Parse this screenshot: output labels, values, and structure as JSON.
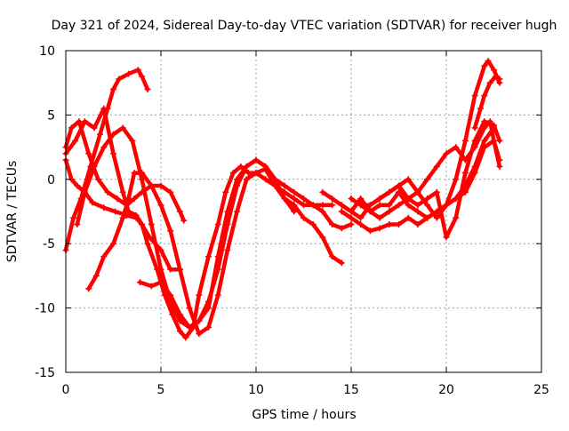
{
  "chart_data": {
    "type": "line",
    "title": "Day 321 of 2024, Sidereal Day-to-day VTEC variation (SDTVAR) for receiver hugh",
    "xlabel": "GPS time / hours",
    "ylabel": "SDTVAR / TECUs",
    "xlim": [
      0,
      25
    ],
    "ylim": [
      -15,
      10
    ],
    "xticks": [
      0,
      5,
      10,
      15,
      20,
      25
    ],
    "yticks": [
      -15,
      -10,
      -5,
      0,
      5,
      10
    ],
    "grid": true,
    "legend": "none",
    "marker": "plus",
    "colors": {
      "series": "#ff0000",
      "grid": "#a0a0a0",
      "axis": "#000000"
    },
    "series": [
      {
        "x": [
          0.0,
          0.3,
          0.6,
          1.0,
          1.4,
          2.0,
          2.6,
          3.2,
          3.7,
          4.0,
          4.4,
          5.0,
          5.5,
          6.0
        ],
        "y": [
          1.5,
          0.0,
          -0.5,
          -1.0,
          -1.8,
          -2.2,
          -2.5,
          -2.8,
          -3.0,
          -3.5,
          -4.5,
          -5.5,
          -7.0,
          -7.0
        ]
      },
      {
        "x": [
          0.0,
          0.3,
          0.7,
          1.2,
          1.7,
          2.2,
          2.7,
          3.2,
          3.6,
          4.0,
          4.5,
          5.0,
          5.5,
          6.0,
          6.2
        ],
        "y": [
          2.5,
          4.0,
          4.5,
          2.0,
          0.0,
          -1.0,
          -1.5,
          -2.0,
          -1.5,
          -1.0,
          -0.5,
          -0.5,
          -1.0,
          -2.5,
          -3.2
        ]
      },
      {
        "x": [
          0.0,
          0.5,
          1.0,
          1.5,
          2.0,
          2.5,
          3.0,
          3.3,
          3.7,
          4.0,
          4.3,
          4.8,
          5.2,
          5.6,
          6.0,
          6.3,
          6.7,
          7.0,
          7.5,
          8.0,
          8.4,
          8.8,
          9.2,
          9.6,
          10.0,
          10.5,
          11.0,
          11.5,
          12.0,
          12.5,
          13.0,
          13.5,
          14.0,
          14.5
        ],
        "y": [
          2.0,
          3.0,
          4.5,
          4.0,
          5.5,
          2.0,
          -1.0,
          -2.5,
          -2.8,
          -3.5,
          -5.0,
          -7.0,
          -9.0,
          -10.5,
          -11.8,
          -12.3,
          -11.5,
          -9.0,
          -6.0,
          -3.5,
          -1.0,
          0.5,
          1.0,
          0.5,
          0.5,
          0.8,
          -0.5,
          -1.5,
          -2.0,
          -3.0,
          -3.5,
          -4.5,
          -6.0,
          -6.5
        ]
      },
      {
        "x": [
          0.0,
          0.4,
          0.8,
          1.3,
          1.8,
          2.2,
          2.5,
          2.8,
          3.3,
          3.8,
          4.0,
          4.3
        ],
        "y": [
          -5.5,
          -3.0,
          -1.5,
          1.0,
          3.5,
          5.5,
          7.0,
          7.8,
          8.2,
          8.5,
          8.0,
          7.0
        ]
      },
      {
        "x": [
          0.6,
          1.0,
          1.5,
          2.0,
          2.5,
          3.0,
          3.5,
          4.0,
          4.5,
          5.0,
          5.5,
          6.0,
          6.5,
          7.0,
          7.5,
          8.0,
          8.5,
          9.0,
          9.5,
          10.0,
          10.5,
          11.0,
          11.5,
          12.0,
          12.5,
          13.0,
          13.5,
          14.0,
          14.5,
          15.0
        ],
        "y": [
          -3.5,
          -1.0,
          1.0,
          2.5,
          3.5,
          4.0,
          3.0,
          0.0,
          -3.5,
          -7.0,
          -9.5,
          -11.0,
          -11.5,
          -11.0,
          -10.0,
          -6.0,
          -2.5,
          0.0,
          1.0,
          1.5,
          1.0,
          0.0,
          -0.5,
          -1.0,
          -1.5,
          -2.0,
          -2.5,
          -3.5,
          -3.8,
          -3.5
        ]
      },
      {
        "x": [
          1.2,
          1.6,
          2.0,
          2.5,
          3.0,
          3.3,
          3.6,
          4.0,
          4.5,
          5.0,
          5.5,
          6.0,
          6.5,
          7.0,
          7.5,
          8.0,
          8.5,
          9.0,
          9.5,
          10.0,
          10.5,
          11.0,
          11.5,
          12.0,
          12.5,
          13.0,
          13.5,
          14.0
        ],
        "y": [
          -8.5,
          -7.5,
          -6.0,
          -5.0,
          -3.0,
          -1.5,
          0.5,
          0.5,
          -0.5,
          -2.0,
          -4.0,
          -7.0,
          -10.0,
          -12.0,
          -11.5,
          -9.0,
          -5.5,
          -2.5,
          0.0,
          0.5,
          0.0,
          -0.5,
          -1.0,
          -1.5,
          -2.0,
          -2.0,
          -2.0,
          -2.0
        ]
      },
      {
        "x": [
          3.9,
          4.5,
          5.0,
          5.5,
          6.0,
          6.5,
          7.0,
          7.5,
          8.0,
          8.5,
          9.0,
          9.5,
          10.0,
          10.5,
          11.0,
          11.5,
          12.0
        ],
        "y": [
          -8.0,
          -8.3,
          -8.0,
          -9.0,
          -10.5,
          -11.5,
          -11.0,
          -9.5,
          -7.0,
          -3.5,
          -0.5,
          1.0,
          1.5,
          1.0,
          0.0,
          -1.5,
          -2.5
        ]
      },
      {
        "x": [
          13.5,
          14.0,
          14.5,
          15.0,
          15.5,
          16.0,
          16.5,
          17.0,
          17.5,
          18.0,
          18.5,
          19.0,
          19.5,
          20.0,
          20.5,
          21.0,
          21.5,
          22.0,
          22.2,
          22.5,
          22.8
        ],
        "y": [
          -1.0,
          -1.5,
          -2.0,
          -2.5,
          -3.0,
          -2.0,
          -1.5,
          -1.0,
          -0.5,
          0.0,
          -1.0,
          -2.0,
          -3.0,
          -2.0,
          0.0,
          3.0,
          6.5,
          8.8,
          9.2,
          8.5,
          7.5
        ]
      },
      {
        "x": [
          15.0,
          15.5,
          16.0,
          16.5,
          17.0,
          17.5,
          18.0,
          18.5,
          19.0,
          19.5,
          20.0,
          20.5,
          21.0,
          21.5,
          22.0,
          22.5,
          22.8
        ],
        "y": [
          -1.5,
          -2.0,
          -2.0,
          -1.5,
          -1.0,
          -0.5,
          -1.5,
          -2.0,
          -1.5,
          -1.0,
          -4.5,
          -3.0,
          0.5,
          3.0,
          4.5,
          4.2,
          3.0
        ]
      },
      {
        "x": [
          14.5,
          15.0,
          15.5,
          16.0,
          16.5,
          17.0,
          17.5,
          18.0,
          18.5,
          19.0,
          19.5,
          20.0,
          20.5,
          21.0,
          21.5,
          22.0,
          22.3,
          22.5,
          22.8
        ],
        "y": [
          -2.0,
          -2.5,
          -1.5,
          -2.5,
          -3.0,
          -2.5,
          -2.0,
          -1.5,
          -1.0,
          0.0,
          1.0,
          2.0,
          2.5,
          1.5,
          2.5,
          4.0,
          4.5,
          3.0,
          1.0
        ]
      },
      {
        "x": [
          15.5,
          16.0,
          16.5,
          17.0,
          17.5,
          18.0,
          18.5,
          19.0,
          19.5,
          20.0,
          20.5,
          21.0,
          21.5,
          22.0,
          22.5,
          22.8
        ],
        "y": [
          -2.0,
          -2.5,
          -2.0,
          -2.0,
          -1.0,
          -2.0,
          -2.5,
          -3.0,
          -2.5,
          -2.0,
          -1.5,
          -1.0,
          0.5,
          2.5,
          3.0,
          1.5
        ]
      },
      {
        "x": [
          14.5,
          15.0,
          15.5,
          16.0,
          16.5,
          17.0,
          17.5,
          18.0,
          18.5,
          19.0,
          19.5,
          20.0,
          20.5,
          21.0,
          21.5,
          22.0,
          22.5
        ],
        "y": [
          -2.5,
          -3.0,
          -3.5,
          -4.0,
          -3.8,
          -3.5,
          -3.5,
          -3.0,
          -3.5,
          -3.0,
          -2.5,
          -2.0,
          -1.5,
          -0.5,
          1.0,
          3.0,
          4.0
        ]
      },
      {
        "x": [
          21.5,
          21.8,
          22.0,
          22.3,
          22.6,
          22.8
        ],
        "y": [
          4.0,
          5.5,
          6.5,
          7.5,
          8.0,
          7.8
        ]
      }
    ]
  }
}
